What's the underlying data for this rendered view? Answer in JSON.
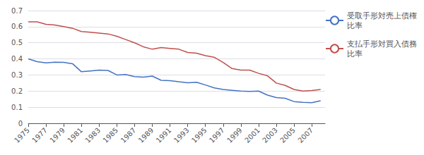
{
  "chart_data": {
    "type": "line",
    "x": [
      1975,
      1976,
      1977,
      1978,
      1979,
      1980,
      1981,
      1982,
      1983,
      1984,
      1985,
      1986,
      1987,
      1988,
      1989,
      1990,
      1991,
      1992,
      1993,
      1994,
      1995,
      1996,
      1997,
      1998,
      1999,
      2000,
      2001,
      2002,
      2003,
      2004,
      2005,
      2006,
      2007,
      2008
    ],
    "series": [
      {
        "name": "受取手形対売上債権\n比率",
        "color": "#4472C4",
        "values": [
          0.4,
          0.383,
          0.375,
          0.38,
          0.378,
          0.37,
          0.32,
          0.325,
          0.33,
          0.328,
          0.3,
          0.303,
          0.29,
          0.287,
          0.293,
          0.267,
          0.265,
          0.258,
          0.252,
          0.255,
          0.238,
          0.22,
          0.21,
          0.205,
          0.2,
          0.198,
          0.2,
          0.175,
          0.16,
          0.155,
          0.135,
          0.13,
          0.128,
          0.14
        ]
      },
      {
        "name": "支払手形対買入債務\n比率",
        "color": "#C0504D",
        "values": [
          0.63,
          0.63,
          0.615,
          0.61,
          0.6,
          0.59,
          0.57,
          0.565,
          0.56,
          0.555,
          0.54,
          0.52,
          0.5,
          0.475,
          0.46,
          0.47,
          0.465,
          0.46,
          0.44,
          0.435,
          0.42,
          0.41,
          0.378,
          0.34,
          0.33,
          0.33,
          0.31,
          0.295,
          0.25,
          0.235,
          0.21,
          0.2,
          0.203,
          0.21
        ]
      }
    ],
    "xlim": [
      1975,
      2008.5
    ],
    "xticks": [
      1975,
      1977,
      1979,
      1981,
      1983,
      1985,
      1987,
      1989,
      1991,
      1993,
      1995,
      1997,
      1999,
      2001,
      2003,
      2005,
      2007
    ],
    "ylim": [
      0,
      0.7
    ],
    "yticks": [
      0,
      0.1,
      0.2,
      0.3,
      0.4,
      0.5,
      0.6,
      0.7
    ],
    "grid": true,
    "legend": "upper right"
  }
}
